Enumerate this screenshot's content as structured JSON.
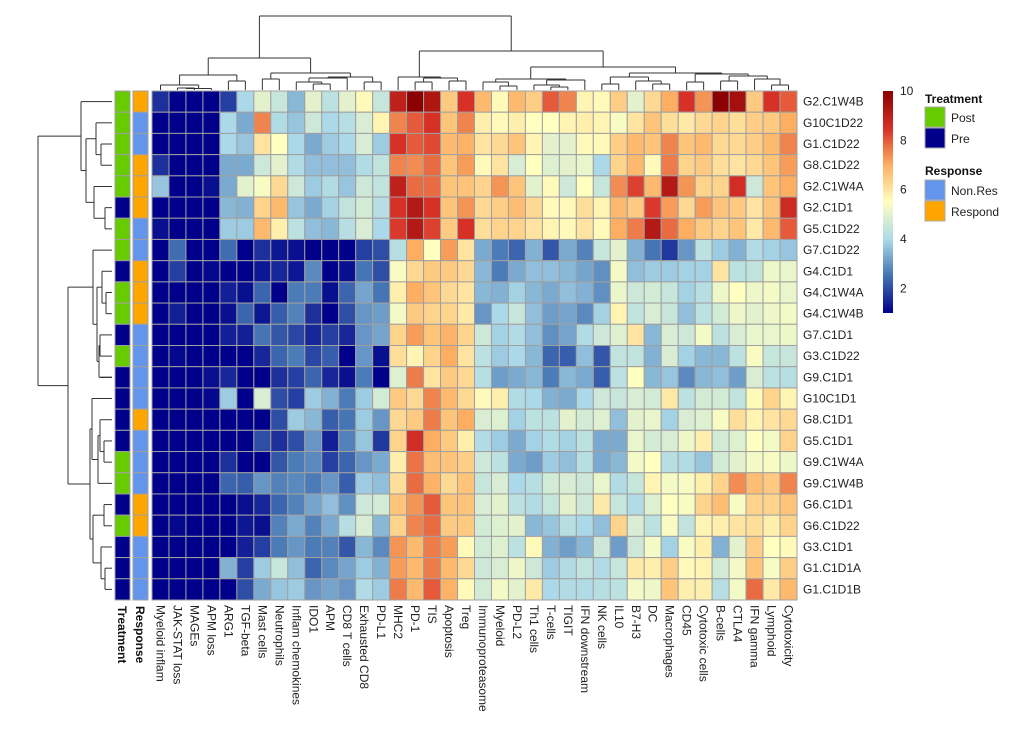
{
  "chart_data": {
    "type": "heatmap",
    "title": "",
    "color_scale": {
      "min": 1,
      "max": 10,
      "palette": "RdYlBu (reversed)",
      "ticks": [
        2,
        4,
        6,
        8,
        10
      ],
      "colors": [
        "#00008b",
        "#4575b4",
        "#abd9e9",
        "#ffffbf",
        "#fdae61",
        "#d73027",
        "#8b0000"
      ]
    },
    "rows": [
      "G2.C1W4B",
      "G10C1D22",
      "G1.C1D22",
      "G8.C1D22",
      "G2.C1W4A",
      "G2.C1D1",
      "G5.C1D22",
      "G7.C1D22",
      "G4.C1D1",
      "G4.C1W4A",
      "G4.C1W4B",
      "G7.C1D1",
      "G3.C1D22",
      "G9.C1D1",
      "G10C1D1",
      "G8.C1D1",
      "G5.C1D1",
      "G9.C1W4A",
      "G9.C1W4B",
      "G6.C1D1",
      "G6.C1D22",
      "G3.C1D1",
      "G1.C1D1A",
      "G1.C1D1B"
    ],
    "columns": [
      "Myeloid inflam",
      "JAK-STAT loss",
      "MAGEs",
      "APM loss",
      "ARG1",
      "TGF-beta",
      "Mast cells",
      "Neutrophils",
      "Inflam chemokines",
      "IDO1",
      "APM",
      "CD8 T cells",
      "Exhausted CD8",
      "PD-L1",
      "MHC2",
      "PD-1",
      "TIS",
      "Apoptosis",
      "Treg",
      "Immunoproteasome",
      "Myeloid",
      "PD-L2",
      "Th1 cells",
      "T-cells",
      "TIGIT",
      "IFN downstream",
      "NK cells",
      "IL10",
      "B7-H3",
      "DC",
      "Macrophages",
      "CD45",
      "Cytotoxic cells",
      "B-cells",
      "CTLA4",
      "IFN gamma",
      "Lymphoid",
      "Cytotoxicity"
    ],
    "values": [
      [
        1.6,
        1,
        1,
        1,
        1.8,
        4,
        5,
        4.5,
        3.5,
        5,
        4.3,
        5,
        5.6,
        4.5,
        9,
        10,
        9.3,
        6.5,
        8.5,
        6.8,
        5.6,
        6.8,
        6.4,
        8,
        7.5,
        5.7,
        5.6,
        6.4,
        5,
        6.2,
        7,
        8.5,
        7.3,
        10,
        9.5,
        6.5,
        8.5,
        8
      ],
      [
        1,
        1,
        1,
        1,
        4,
        3.3,
        7.5,
        4.1,
        3.7,
        4.6,
        4,
        4.2,
        4.8,
        5.7,
        7.5,
        8,
        8.5,
        6.6,
        7.5,
        5.8,
        5.6,
        5.8,
        5.5,
        5.5,
        5.7,
        5.8,
        5.7,
        5.4,
        6,
        6.6,
        6.1,
        5.9,
        6.2,
        6.3,
        6.1,
        6.4,
        6.5,
        7
      ],
      [
        1,
        1,
        1,
        1,
        4,
        3.7,
        6,
        5.5,
        4,
        3.3,
        3.8,
        4,
        4.8,
        3.8,
        8.5,
        8,
        8.2,
        6.8,
        6.9,
        6,
        6.2,
        6.6,
        5.7,
        5,
        5,
        5.6,
        5.6,
        6.4,
        6.8,
        6.6,
        7.5,
        6.6,
        6.8,
        6.2,
        6.2,
        6.4,
        6.8,
        7.5
      ],
      [
        1.6,
        1,
        1,
        1,
        3.3,
        3.3,
        4.6,
        5,
        4.1,
        3.6,
        3.6,
        3.6,
        4.1,
        4.4,
        7.5,
        7.4,
        7.8,
        6.6,
        7.2,
        5.6,
        6,
        4.8,
        5.5,
        4.9,
        5,
        5.1,
        4,
        6.3,
        6.8,
        5.6,
        7.6,
        6.3,
        6.5,
        6.1,
        6,
        6.2,
        6.6,
        7.2
      ],
      [
        3.7,
        1,
        1,
        1.2,
        3.3,
        5,
        5.4,
        6.2,
        4.6,
        3.8,
        4.1,
        3.7,
        4.6,
        4.4,
        9,
        7.8,
        7.8,
        6.6,
        6.6,
        6.3,
        7.3,
        6.6,
        5,
        5.6,
        4.6,
        5.5,
        4.5,
        7.4,
        8.3,
        6.8,
        9.2,
        7.3,
        6.3,
        6.3,
        8.6,
        4.6,
        6.6,
        7
      ],
      [
        1,
        1,
        1,
        1,
        3.5,
        3.4,
        6.3,
        6.8,
        3.7,
        3.3,
        3.9,
        4.4,
        4.7,
        4.2,
        8.5,
        9.2,
        8.5,
        6.6,
        7.3,
        6.2,
        6.4,
        6.7,
        6.2,
        5.6,
        5.6,
        6.1,
        5.7,
        6.8,
        6.5,
        8.4,
        7.2,
        6.2,
        7.2,
        6.6,
        6.5,
        6,
        6.6,
        8.7
      ],
      [
        1.2,
        1,
        1,
        1,
        3.8,
        3.8,
        6.8,
        5.8,
        4.3,
        3.6,
        3.5,
        4.2,
        4.8,
        4,
        8.4,
        9.2,
        8.3,
        6.5,
        8.5,
        6.1,
        6.3,
        6.3,
        6,
        5.7,
        5.6,
        6,
        5.6,
        7,
        7.6,
        9.2,
        7.8,
        7,
        6.5,
        6.3,
        6.6,
        5.9,
        6.8,
        8
      ],
      [
        1,
        2.4,
        1,
        1,
        2.4,
        1,
        1.6,
        1.3,
        1.2,
        1,
        1,
        1,
        1.8,
        2.0,
        4.2,
        7,
        5.5,
        7.2,
        6,
        3.3,
        2.6,
        2.3,
        3.4,
        2.1,
        3.3,
        2.7,
        4.5,
        5,
        3.4,
        2.5,
        1.7,
        3,
        4.3,
        3.8,
        3.4,
        4.1,
        3.9,
        3.7
      ],
      [
        1,
        1.8,
        1,
        1.1,
        1,
        1,
        1.3,
        1.5,
        1.3,
        2.8,
        1,
        1.2,
        2.5,
        2,
        5.4,
        6.2,
        6.5,
        6.5,
        6.2,
        3.5,
        2.6,
        3.3,
        3.6,
        3.6,
        3.5,
        3.2,
        2.9,
        5.3,
        3.6,
        3.8,
        3.8,
        3.9,
        3.9,
        6,
        4.3,
        4.4,
        5.2,
        5.1
      ],
      [
        1,
        1,
        1,
        1,
        1.4,
        1.2,
        2.3,
        1,
        2.6,
        2.6,
        1.2,
        2.3,
        3.2,
        2.5,
        5.8,
        7,
        6.6,
        6.2,
        6,
        3.5,
        3.4,
        3.9,
        3.5,
        3.3,
        3.6,
        3.4,
        2.9,
        5.1,
        4.6,
        4.7,
        4.5,
        3.9,
        4.2,
        5.2,
        5.5,
        5.2,
        5.3,
        5.1
      ],
      [
        1,
        1.4,
        1,
        1,
        1.2,
        2.3,
        1.3,
        2.2,
        2.7,
        1.6,
        1,
        2,
        3,
        3.1,
        5.3,
        6.5,
        6.3,
        6.3,
        5.9,
        3,
        4,
        4.5,
        3.6,
        3.1,
        3.2,
        2.8,
        3.9,
        5.7,
        4.4,
        4.8,
        4.5,
        3.6,
        4.3,
        4.7,
        5.2,
        5,
        5.2,
        5.3
      ],
      [
        1,
        1,
        1,
        1,
        1.4,
        1.4,
        2.5,
        2.1,
        1.9,
        1.5,
        1.8,
        1.5,
        3,
        3.2,
        6.3,
        7.2,
        6.6,
        6.9,
        6.3,
        4.6,
        3.9,
        4.1,
        3.6,
        2.9,
        3.2,
        4.1,
        4.6,
        4.9,
        6,
        3.5,
        4.8,
        4.6,
        5.3,
        4.3,
        4.8,
        5.1,
        5.1,
        5.2
      ],
      [
        1,
        1.1,
        1,
        1,
        1,
        1,
        1.5,
        2.3,
        2.6,
        1.9,
        2.2,
        1,
        3,
        1.2,
        6.1,
        5.7,
        6.3,
        7,
        6,
        4.3,
        3.8,
        4,
        3.5,
        2.3,
        2.2,
        3.6,
        2.1,
        4.4,
        4.4,
        3.4,
        4.8,
        3.9,
        3.5,
        3.5,
        4.3,
        5.4,
        4.5,
        4.5
      ],
      [
        1,
        1,
        1,
        1.2,
        1.5,
        1,
        1,
        1.6,
        1.8,
        2.3,
        1.5,
        1.2,
        2.6,
        1,
        4.9,
        7.6,
        6,
        6.5,
        6.2,
        4.2,
        3.1,
        3.3,
        3.5,
        2.6,
        3.5,
        3.3,
        2.2,
        4.3,
        5.5,
        3.5,
        3.7,
        2.8,
        3.5,
        3.6,
        3.1,
        4.8,
        4.3,
        4.2
      ],
      [
        1,
        1,
        1,
        1.1,
        3.8,
        1,
        4.8,
        2,
        1.8,
        3.8,
        3.4,
        2.6,
        3.8,
        4.7,
        6.5,
        6.2,
        7.5,
        6.8,
        6.2,
        5.6,
        5.8,
        4.1,
        4,
        3.4,
        3.3,
        4,
        4.6,
        4.5,
        4.8,
        4.7,
        5.9,
        4.3,
        4.7,
        4.7,
        4.4,
        5.6,
        6.3,
        5.7
      ],
      [
        1,
        1,
        1,
        1,
        1,
        1,
        1,
        2,
        3.8,
        3.5,
        2.2,
        2.5,
        3.8,
        3,
        6.2,
        6.5,
        7.6,
        6.6,
        7,
        4.8,
        4.9,
        3.9,
        4.3,
        4.3,
        5,
        4.7,
        4.9,
        3.6,
        5,
        5.1,
        3.9,
        4.8,
        4.9,
        5.4,
        6.1,
        5.7,
        6,
        6.2
      ],
      [
        1,
        1,
        1,
        1,
        1,
        1,
        2,
        1.6,
        2,
        3,
        1.4,
        2.7,
        3.7,
        1.7,
        6.3,
        8.6,
        7,
        6.5,
        5.8,
        4.1,
        3.8,
        3.3,
        3.9,
        4.1,
        3.9,
        4.3,
        3.3,
        3.3,
        5.1,
        4.7,
        4.8,
        5.2,
        5.8,
        4.7,
        4.9,
        5.5,
        5.3,
        6.3
      ],
      [
        1,
        1,
        1,
        1,
        1.6,
        1,
        1,
        2.1,
        2.6,
        2.8,
        1.8,
        2.3,
        3,
        3.3,
        5.8,
        7.7,
        6.7,
        6.6,
        6.4,
        4.6,
        4.3,
        3.3,
        3.1,
        3.8,
        3.6,
        4.2,
        3.3,
        3.5,
        5.3,
        5.5,
        4.2,
        4.1,
        3.7,
        4.7,
        5,
        5.3,
        5.4,
        5.2
      ],
      [
        1,
        1,
        1,
        1,
        2.3,
        2.2,
        3,
        2.7,
        2.8,
        2.6,
        3,
        2.2,
        3.8,
        3.6,
        6.1,
        7.8,
        6.9,
        6.2,
        6.6,
        4.5,
        4.8,
        4,
        4.2,
        4.7,
        4.8,
        4.6,
        5.1,
        4.1,
        4.5,
        5.7,
        5.3,
        5.4,
        5.8,
        6.3,
        7.4,
        6.7,
        6.5,
        7.5
      ],
      [
        1,
        1,
        1,
        1,
        1,
        1.2,
        1.5,
        2.3,
        2.7,
        3.2,
        3.6,
        2.9,
        4.6,
        4.7,
        6.6,
        7.3,
        8,
        6.6,
        6.6,
        4.8,
        5,
        4.3,
        4.1,
        4.5,
        5,
        4.6,
        5.9,
        4.5,
        4.1,
        4.9,
        5.5,
        5.4,
        6.3,
        6.7,
        5.4,
        6.3,
        6.3,
        6.6
      ],
      [
        1,
        1.1,
        1,
        1,
        1,
        1.3,
        1.2,
        2.7,
        3.3,
        2.7,
        3.3,
        4.2,
        4.8,
        3.5,
        6.3,
        7.5,
        7.8,
        6.5,
        6.5,
        4.7,
        4.9,
        5,
        3.5,
        3.7,
        4.2,
        4,
        3.6,
        6.3,
        4.8,
        4.3,
        5.4,
        4.4,
        5.7,
        5.8,
        6,
        6.1,
        5.8,
        6.3
      ],
      [
        1,
        1,
        1,
        1,
        1,
        1.4,
        1.8,
        2.6,
        3,
        2.6,
        2.7,
        2.1,
        3.5,
        2.8,
        7.3,
        6.8,
        7.6,
        7.2,
        5.6,
        4.7,
        4.9,
        4.3,
        5.6,
        3.4,
        3.1,
        3.5,
        4.6,
        3.1,
        4.6,
        5.3,
        3.9,
        5.4,
        5.8,
        3.4,
        5,
        6.4,
        5.5,
        5.6
      ],
      [
        1,
        1,
        1,
        1,
        3.4,
        1.8,
        3.8,
        4.5,
        3.6,
        2.3,
        2.8,
        3.2,
        3.8,
        3.4,
        7.2,
        6.8,
        7.6,
        6.8,
        6.2,
        4.6,
        4.8,
        5.2,
        4.6,
        3.8,
        4.1,
        4.4,
        4.1,
        4.5,
        5.9,
        5.8,
        6.4,
        5.6,
        5.7,
        4.7,
        5.3,
        6.6,
        5.4,
        6.4
      ],
      [
        1,
        1,
        1,
        1,
        1,
        2,
        3.3,
        3.7,
        3.8,
        3,
        3.2,
        3,
        4.1,
        3.8,
        7.6,
        6.8,
        8,
        6.9,
        5.6,
        4.7,
        5.3,
        5,
        5.9,
        4,
        4.1,
        4.1,
        4.2,
        4.3,
        5.3,
        5.2,
        6.6,
        5.8,
        5.8,
        4.2,
        5.3,
        7.8,
        5.9,
        6.8
      ]
    ],
    "annotations": {
      "Treatment": [
        "Post",
        "Post",
        "Post",
        "Post",
        "Post",
        "Pre",
        "Post",
        "Post",
        "Pre",
        "Post",
        "Post",
        "Pre",
        "Post",
        "Pre",
        "Pre",
        "Pre",
        "Pre",
        "Post",
        "Post",
        "Pre",
        "Post",
        "Pre",
        "Pre",
        "Pre"
      ],
      "Response": [
        "Responder",
        "Non.Responder",
        "Non.Responder",
        "Responder",
        "Responder",
        "Responder",
        "Non.Responder",
        "Non.Responder",
        "Responder",
        "Responder",
        "Responder",
        "Non.Responder",
        "Non.Responder",
        "Non.Responder",
        "Non.Responder",
        "Responder",
        "Non.Responder",
        "Non.Responder",
        "Non.Responder",
        "Responder",
        "Responder",
        "Non.Responder",
        "Non.Responder",
        "Non.Responder"
      ]
    },
    "annotation_labels": [
      "Treatment",
      "Response"
    ],
    "legend": {
      "placement": "right",
      "groups": [
        {
          "title": "Treatment",
          "items": [
            {
              "label": "Post",
              "color": "#66cc00"
            },
            {
              "label": "Pre",
              "color": "#00008b"
            }
          ]
        },
        {
          "title": "Response",
          "items": [
            {
              "label": "Non.Res",
              "color": "#6495ed"
            },
            {
              "label": "Respond",
              "color": "#ffa500"
            }
          ]
        }
      ]
    },
    "dendrograms": {
      "rows": true,
      "columns": true
    }
  }
}
